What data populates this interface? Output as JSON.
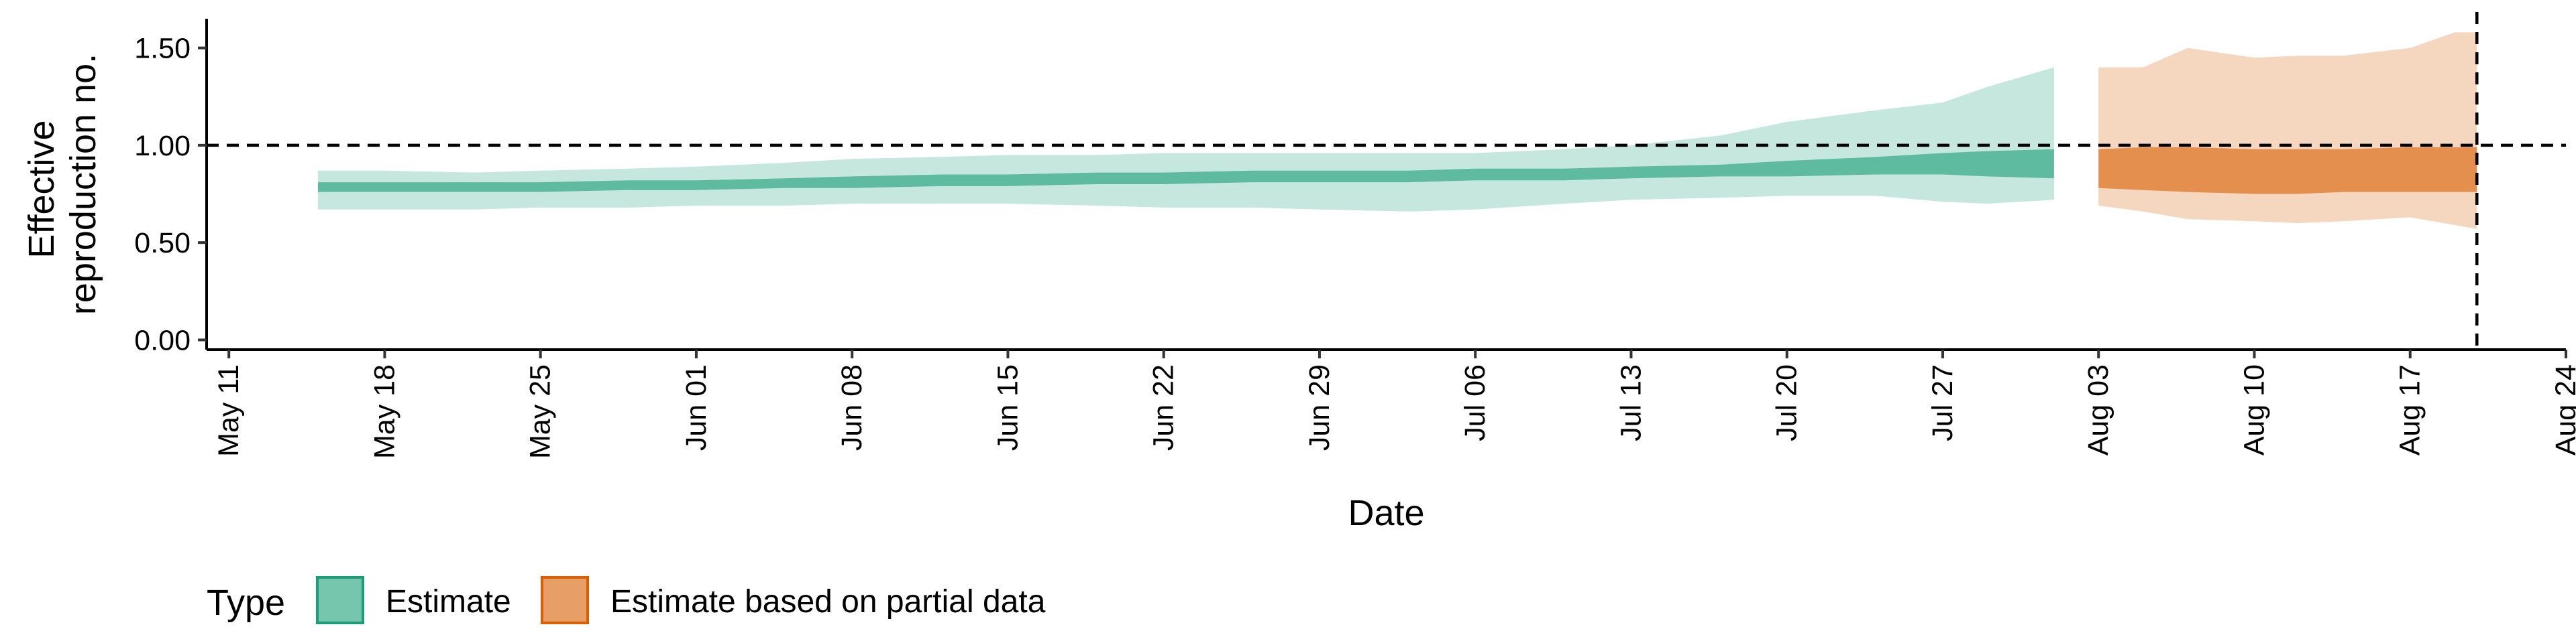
{
  "chart_data": {
    "type": "area",
    "xlabel": "Date",
    "ylabel_lines": [
      "Effective",
      "reproduction no."
    ],
    "x_tick_labels": [
      "May 11",
      "May 18",
      "May 25",
      "Jun 01",
      "Jun 08",
      "Jun 15",
      "Jun 22",
      "Jun 29",
      "Jul 06",
      "Jul 13",
      "Jul 20",
      "Jul 27",
      "Aug 03",
      "Aug 10",
      "Aug 17",
      "Aug 24"
    ],
    "x_tick_dates": [
      "2020-05-11",
      "2020-05-18",
      "2020-05-25",
      "2020-06-01",
      "2020-06-08",
      "2020-06-15",
      "2020-06-22",
      "2020-06-29",
      "2020-07-06",
      "2020-07-13",
      "2020-07-20",
      "2020-07-27",
      "2020-08-03",
      "2020-08-10",
      "2020-08-17",
      "2020-08-24"
    ],
    "xlim": [
      "2020-05-10",
      "2020-08-24"
    ],
    "ylim": [
      -0.05,
      1.65
    ],
    "y_ticks": [
      0.0,
      0.5,
      1.0,
      1.5
    ],
    "y_tick_labels": [
      "0.00",
      "0.50",
      "1.00",
      "1.50"
    ],
    "reference_line": {
      "y": 1.0,
      "style": "dashed"
    },
    "vertical_line": {
      "x": "2020-08-20",
      "style": "dashed"
    },
    "grid": false,
    "legend": {
      "title": "Type",
      "position": "bottom-left",
      "entries": [
        {
          "label": "Estimate",
          "color": "#1b9e77"
        },
        {
          "label": "Estimate based on partial data",
          "color": "#d95f02"
        }
      ]
    },
    "series": [
      {
        "name": "Estimate",
        "color": "#1b9e77",
        "x": [
          "2020-05-15",
          "2020-05-18",
          "2020-05-22",
          "2020-05-25",
          "2020-05-29",
          "2020-06-01",
          "2020-06-05",
          "2020-06-08",
          "2020-06-12",
          "2020-06-15",
          "2020-06-19",
          "2020-06-22",
          "2020-06-26",
          "2020-06-29",
          "2020-07-03",
          "2020-07-06",
          "2020-07-10",
          "2020-07-13",
          "2020-07-17",
          "2020-07-20",
          "2020-07-24",
          "2020-07-27",
          "2020-07-29",
          "2020-08-01"
        ],
        "outer_lower": [
          0.67,
          0.67,
          0.67,
          0.68,
          0.68,
          0.69,
          0.69,
          0.7,
          0.7,
          0.7,
          0.69,
          0.68,
          0.68,
          0.67,
          0.66,
          0.67,
          0.7,
          0.72,
          0.73,
          0.74,
          0.74,
          0.71,
          0.7,
          0.72
        ],
        "outer_upper": [
          0.87,
          0.87,
          0.86,
          0.87,
          0.88,
          0.89,
          0.91,
          0.93,
          0.94,
          0.95,
          0.95,
          0.96,
          0.96,
          0.96,
          0.96,
          0.96,
          0.98,
          1.0,
          1.05,
          1.12,
          1.18,
          1.22,
          1.3,
          1.4
        ],
        "inner_lower": [
          0.76,
          0.76,
          0.76,
          0.76,
          0.77,
          0.77,
          0.78,
          0.78,
          0.79,
          0.79,
          0.8,
          0.8,
          0.81,
          0.81,
          0.81,
          0.82,
          0.82,
          0.83,
          0.84,
          0.84,
          0.85,
          0.85,
          0.84,
          0.83
        ],
        "inner_upper": [
          0.81,
          0.81,
          0.81,
          0.81,
          0.82,
          0.82,
          0.83,
          0.84,
          0.85,
          0.85,
          0.86,
          0.86,
          0.87,
          0.87,
          0.87,
          0.88,
          0.88,
          0.89,
          0.9,
          0.92,
          0.94,
          0.96,
          0.97,
          0.98
        ]
      },
      {
        "name": "Estimate based on partial data",
        "color": "#d95f02",
        "x": [
          "2020-08-03",
          "2020-08-05",
          "2020-08-07",
          "2020-08-10",
          "2020-08-12",
          "2020-08-14",
          "2020-08-17",
          "2020-08-19",
          "2020-08-20"
        ],
        "outer_lower": [
          0.69,
          0.66,
          0.62,
          0.61,
          0.6,
          0.61,
          0.63,
          0.59,
          0.57
        ],
        "outer_upper": [
          1.4,
          1.4,
          1.5,
          1.45,
          1.46,
          1.46,
          1.5,
          1.58,
          1.58
        ],
        "inner_lower": [
          0.78,
          0.77,
          0.76,
          0.75,
          0.75,
          0.76,
          0.76,
          0.76,
          0.76
        ],
        "inner_upper": [
          0.98,
          0.99,
          0.99,
          0.98,
          0.98,
          0.98,
          0.99,
          0.99,
          0.99
        ]
      }
    ]
  }
}
